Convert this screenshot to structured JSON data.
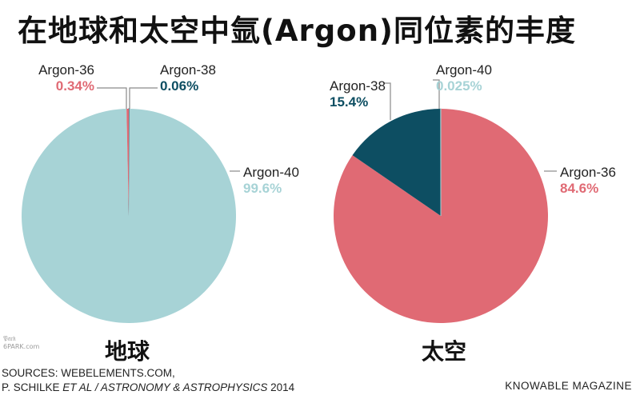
{
  "title": "在地球和太空中氩(Argon)同位素的丰度",
  "colors": {
    "argon36": "#e06a74",
    "argon38": "#0d4e62",
    "argon40": "#a7d3d6"
  },
  "chart_data": [
    {
      "type": "pie",
      "caption": "地球",
      "slices": [
        {
          "label": "Argon-36",
          "value": 0.34,
          "display": "0.34%",
          "color": "#e06a74"
        },
        {
          "label": "Argon-38",
          "value": 0.06,
          "display": "0.06%",
          "color": "#0d4e62"
        },
        {
          "label": "Argon-40",
          "value": 99.6,
          "display": "99.6%",
          "color": "#a7d3d6"
        }
      ]
    },
    {
      "type": "pie",
      "caption": "太空",
      "slices": [
        {
          "label": "Argon-36",
          "value": 84.6,
          "display": "84.6%",
          "color": "#e06a74"
        },
        {
          "label": "Argon-38",
          "value": 15.4,
          "display": "15.4%",
          "color": "#0d4e62"
        },
        {
          "label": "Argon-40",
          "value": 0.025,
          "display": "0.025%",
          "color": "#a7d3d6"
        }
      ]
    }
  ],
  "sources": {
    "line1": "SOURCES: WEBELEMENTS.COM,",
    "line2_prefix": "P. SCHILKE ",
    "line2_italic": "ET AL / ASTRONOMY & ASTROPHYSICS",
    "line2_suffix": " 2014"
  },
  "credit": "KNOWABLE MAGAZINE",
  "watermark": {
    "line1": "𝔓𝔞𝔯𝔨",
    "line2": "6PARK.com"
  }
}
